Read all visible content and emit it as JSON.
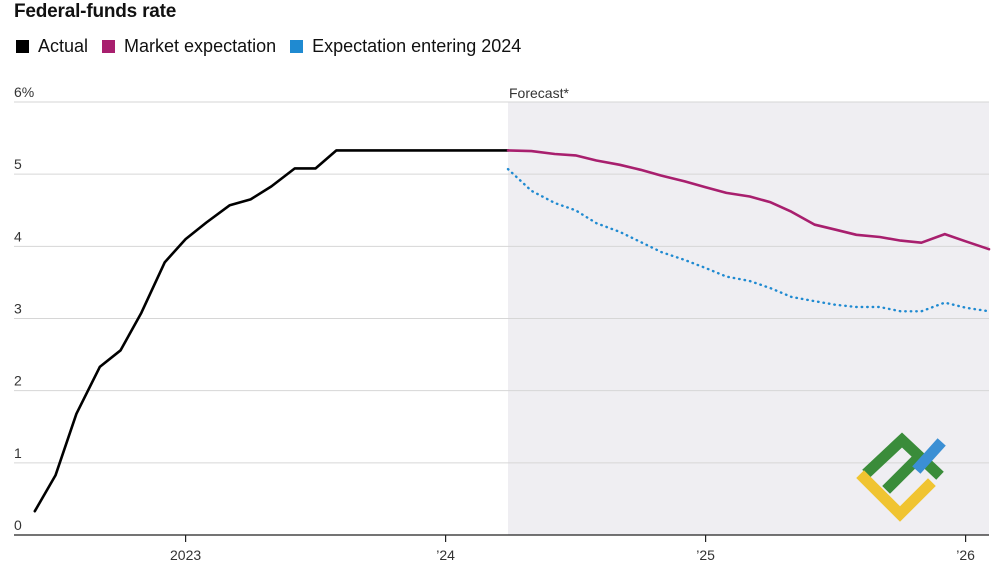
{
  "chart_data": {
    "type": "line",
    "title": "Federal-funds rate",
    "forecast_label": "Forecast*",
    "xlabel": "",
    "ylabel": "",
    "xlim": [
      2022.34,
      2026.09
    ],
    "ylim": [
      0,
      6
    ],
    "x_ticks": [
      {
        "value": 2023.0,
        "label": "2023"
      },
      {
        "value": 2024.0,
        "label": "’24"
      },
      {
        "value": 2025.0,
        "label": "’25"
      },
      {
        "value": 2026.0,
        "label": "’26"
      }
    ],
    "y_ticks": [
      {
        "value": 0,
        "label": "0"
      },
      {
        "value": 1,
        "label": "1"
      },
      {
        "value": 2,
        "label": "2"
      },
      {
        "value": 3,
        "label": "3"
      },
      {
        "value": 4,
        "label": "4"
      },
      {
        "value": 5,
        "label": "5"
      },
      {
        "value": 6,
        "label": "6%"
      }
    ],
    "forecast_start": 2024.24,
    "grid": true,
    "legend_position": "top-left",
    "series": [
      {
        "name": "Actual",
        "color": "#000000",
        "style": "solid",
        "x": [
          2022.42,
          2022.5,
          2022.58,
          2022.67,
          2022.75,
          2022.83,
          2022.92,
          2023.0,
          2023.08,
          2023.17,
          2023.25,
          2023.33,
          2023.42,
          2023.5,
          2023.58,
          2023.67,
          2023.75,
          2023.83,
          2023.92,
          2024.0,
          2024.08,
          2024.17,
          2024.24
        ],
        "values": [
          0.33,
          0.83,
          1.68,
          2.33,
          2.56,
          3.08,
          3.78,
          4.1,
          4.33,
          4.57,
          4.65,
          4.83,
          5.08,
          5.08,
          5.33,
          5.33,
          5.33,
          5.33,
          5.33,
          5.33,
          5.33,
          5.33,
          5.33
        ]
      },
      {
        "name": "Market expectation",
        "color": "#a81f6e",
        "style": "solid",
        "x": [
          2024.24,
          2024.33,
          2024.42,
          2024.5,
          2024.58,
          2024.67,
          2024.75,
          2024.83,
          2024.92,
          2025.0,
          2025.08,
          2025.17,
          2025.25,
          2025.33,
          2025.42,
          2025.5,
          2025.58,
          2025.67,
          2025.75,
          2025.83,
          2025.92,
          2026.0,
          2026.09
        ],
        "values": [
          5.33,
          5.32,
          5.28,
          5.26,
          5.19,
          5.13,
          5.06,
          4.98,
          4.9,
          4.82,
          4.74,
          4.69,
          4.61,
          4.48,
          4.3,
          4.23,
          4.16,
          4.13,
          4.08,
          4.05,
          4.17,
          4.07,
          3.96
        ]
      },
      {
        "name": "Expectation entering 2024",
        "color": "#1f8ad1",
        "style": "dotted",
        "x": [
          2024.24,
          2024.33,
          2024.42,
          2024.5,
          2024.58,
          2024.67,
          2024.75,
          2024.83,
          2024.92,
          2025.0,
          2025.08,
          2025.17,
          2025.25,
          2025.33,
          2025.42,
          2025.5,
          2025.58,
          2025.67,
          2025.75,
          2025.83,
          2025.92,
          2026.0,
          2026.09
        ],
        "values": [
          5.07,
          4.77,
          4.6,
          4.5,
          4.32,
          4.2,
          4.06,
          3.92,
          3.81,
          3.7,
          3.58,
          3.52,
          3.42,
          3.3,
          3.24,
          3.19,
          3.16,
          3.16,
          3.1,
          3.1,
          3.22,
          3.15,
          3.1
        ]
      }
    ]
  },
  "watermark": {
    "colors": [
      "#3a8c3a",
      "#3b8fd4",
      "#f0c431"
    ]
  }
}
